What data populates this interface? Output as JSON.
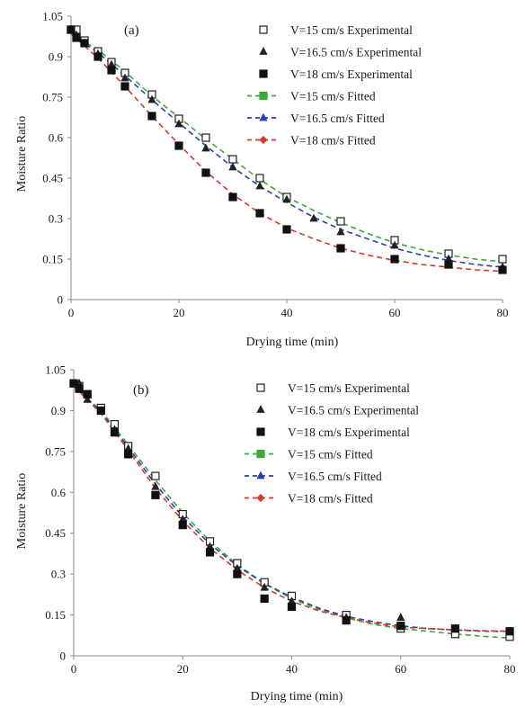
{
  "chart_data": [
    {
      "type": "scatter",
      "panel_label": "(a)",
      "xlabel": "Drying time (min)",
      "ylabel": "Moisture Ratio",
      "xlim": [
        0,
        80
      ],
      "ylim": [
        0,
        1.05
      ],
      "x_ticks": [
        "0",
        "20",
        "40",
        "60",
        "80"
      ],
      "y_ticks": [
        "0",
        "0.15",
        "0.3",
        "0.45",
        "0.6",
        "0.75",
        "0.9",
        "1.05"
      ],
      "grid": false,
      "legend_position": "top-right",
      "series": [
        {
          "name": "V=15 cm/s Experimental",
          "kind": "experimental",
          "marker": "square-open",
          "color": "#222222",
          "x": [
            0,
            1,
            2.5,
            5,
            7.5,
            10,
            15,
            20,
            25,
            30,
            35,
            40,
            50,
            60,
            70,
            80
          ],
          "y": [
            1.0,
            1.0,
            0.96,
            0.92,
            0.88,
            0.84,
            0.76,
            0.67,
            0.6,
            0.52,
            0.45,
            0.38,
            0.29,
            0.22,
            0.17,
            0.15
          ]
        },
        {
          "name": "V=16.5 cm/s Experimental",
          "kind": "experimental",
          "marker": "triangle",
          "color": "#222222",
          "x": [
            0,
            1,
            2.5,
            5,
            7.5,
            10,
            15,
            20,
            25,
            30,
            35,
            40,
            45,
            50,
            60,
            70,
            80
          ],
          "y": [
            1.0,
            0.98,
            0.95,
            0.91,
            0.87,
            0.82,
            0.74,
            0.65,
            0.56,
            0.49,
            0.42,
            0.37,
            0.3,
            0.25,
            0.2,
            0.15,
            0.12
          ]
        },
        {
          "name": "V=18 cm/s Experimental",
          "kind": "experimental",
          "marker": "square-filled",
          "color": "#111111",
          "x": [
            0,
            1,
            2.5,
            5,
            7.5,
            10,
            15,
            20,
            25,
            30,
            35,
            40,
            50,
            60,
            70,
            80
          ],
          "y": [
            1.0,
            0.97,
            0.95,
            0.9,
            0.85,
            0.79,
            0.68,
            0.57,
            0.47,
            0.38,
            0.32,
            0.26,
            0.19,
            0.15,
            0.13,
            0.11
          ]
        },
        {
          "name": "V=15 cm/s Fitted",
          "kind": "fitted",
          "marker": "square-filled",
          "color": "#3aa83a",
          "x": [
            0,
            5,
            10,
            15,
            20,
            25,
            30,
            35,
            40,
            45,
            50,
            55,
            60,
            65,
            70,
            75,
            80
          ],
          "y": [
            0.985,
            0.925,
            0.845,
            0.755,
            0.675,
            0.595,
            0.52,
            0.445,
            0.38,
            0.33,
            0.285,
            0.245,
            0.21,
            0.185,
            0.165,
            0.15,
            0.14
          ]
        },
        {
          "name": "V=16.5 cm/s Fitted",
          "kind": "fitted",
          "marker": "triangle",
          "color": "#2b3fa8",
          "x": [
            0,
            5,
            10,
            15,
            20,
            25,
            30,
            35,
            40,
            45,
            50,
            55,
            60,
            65,
            70,
            75,
            80
          ],
          "y": [
            0.985,
            0.915,
            0.83,
            0.74,
            0.655,
            0.57,
            0.49,
            0.42,
            0.36,
            0.305,
            0.26,
            0.225,
            0.19,
            0.165,
            0.145,
            0.13,
            0.12
          ]
        },
        {
          "name": "V=18 cm/s Fitted",
          "kind": "fitted",
          "marker": "diamond",
          "color": "#d43a2a",
          "x": [
            0,
            5,
            10,
            15,
            20,
            25,
            30,
            35,
            40,
            45,
            50,
            55,
            60,
            65,
            70,
            75,
            80
          ],
          "y": [
            0.985,
            0.895,
            0.79,
            0.68,
            0.575,
            0.475,
            0.39,
            0.32,
            0.265,
            0.225,
            0.19,
            0.165,
            0.145,
            0.13,
            0.12,
            0.11,
            0.105
          ]
        }
      ]
    },
    {
      "type": "scatter",
      "panel_label": "(b)",
      "xlabel": "Drying time (min)",
      "ylabel": "Moisture Ratio",
      "xlim": [
        0,
        80
      ],
      "ylim": [
        0,
        1.05
      ],
      "x_ticks": [
        "0",
        "20",
        "40",
        "60",
        "80"
      ],
      "y_ticks": [
        "0",
        "0.15",
        "0.3",
        "0.45",
        "0.6",
        "0.75",
        "0.9",
        "1.05"
      ],
      "grid": false,
      "legend_position": "top-right",
      "series": [
        {
          "name": "V=15 cm/s Experimental",
          "kind": "experimental",
          "marker": "square-open",
          "color": "#222222",
          "x": [
            0,
            1,
            2.5,
            5,
            7.5,
            10,
            15,
            20,
            25,
            30,
            35,
            40,
            50,
            60,
            70,
            80
          ],
          "y": [
            1.0,
            0.99,
            0.96,
            0.91,
            0.85,
            0.77,
            0.66,
            0.52,
            0.42,
            0.34,
            0.27,
            0.22,
            0.15,
            0.1,
            0.08,
            0.07
          ]
        },
        {
          "name": "V=16.5 cm/s Experimental",
          "kind": "experimental",
          "marker": "triangle",
          "color": "#222222",
          "x": [
            0,
            1,
            2.5,
            5,
            7.5,
            10,
            15,
            20,
            25,
            30,
            35,
            40,
            50,
            60,
            70,
            80
          ],
          "y": [
            1.0,
            1.0,
            0.94,
            0.9,
            0.83,
            0.76,
            0.62,
            0.5,
            0.4,
            0.32,
            0.25,
            0.2,
            0.14,
            0.14,
            0.1,
            0.09
          ]
        },
        {
          "name": "V=18 cm/s Experimental",
          "kind": "experimental",
          "marker": "square-filled",
          "color": "#111111",
          "x": [
            0,
            1,
            2.5,
            5,
            7.5,
            10,
            15,
            20,
            25,
            30,
            35,
            40,
            50,
            60,
            70,
            80
          ],
          "y": [
            1.0,
            0.98,
            0.96,
            0.9,
            0.82,
            0.74,
            0.59,
            0.48,
            0.38,
            0.3,
            0.21,
            0.18,
            0.13,
            0.11,
            0.1,
            0.09
          ]
        },
        {
          "name": "V=15 cm/s Fitted",
          "kind": "fitted",
          "marker": "square-filled",
          "color": "#3aa83a",
          "x": [
            0,
            5,
            10,
            15,
            20,
            25,
            30,
            35,
            40,
            45,
            50,
            55,
            60,
            65,
            70,
            75,
            80
          ],
          "y": [
            0.99,
            0.9,
            0.775,
            0.645,
            0.525,
            0.42,
            0.335,
            0.265,
            0.21,
            0.17,
            0.14,
            0.115,
            0.1,
            0.09,
            0.08,
            0.072,
            0.065
          ]
        },
        {
          "name": "V=16.5 cm/s Fitted",
          "kind": "fitted",
          "marker": "triangle",
          "color": "#2b3fa8",
          "x": [
            0,
            5,
            10,
            15,
            20,
            25,
            30,
            35,
            40,
            45,
            50,
            55,
            60,
            65,
            70,
            75,
            80
          ],
          "y": [
            0.99,
            0.895,
            0.765,
            0.63,
            0.51,
            0.41,
            0.33,
            0.265,
            0.215,
            0.175,
            0.145,
            0.125,
            0.11,
            0.1,
            0.095,
            0.09,
            0.09
          ]
        },
        {
          "name": "V=18 cm/s Fitted",
          "kind": "fitted",
          "marker": "diamond",
          "color": "#d43a2a",
          "x": [
            0,
            5,
            10,
            15,
            20,
            25,
            30,
            35,
            40,
            45,
            50,
            55,
            60,
            65,
            70,
            75,
            80
          ],
          "y": [
            0.99,
            0.89,
            0.755,
            0.615,
            0.495,
            0.395,
            0.315,
            0.25,
            0.2,
            0.165,
            0.14,
            0.12,
            0.105,
            0.1,
            0.095,
            0.092,
            0.09
          ]
        }
      ]
    }
  ]
}
